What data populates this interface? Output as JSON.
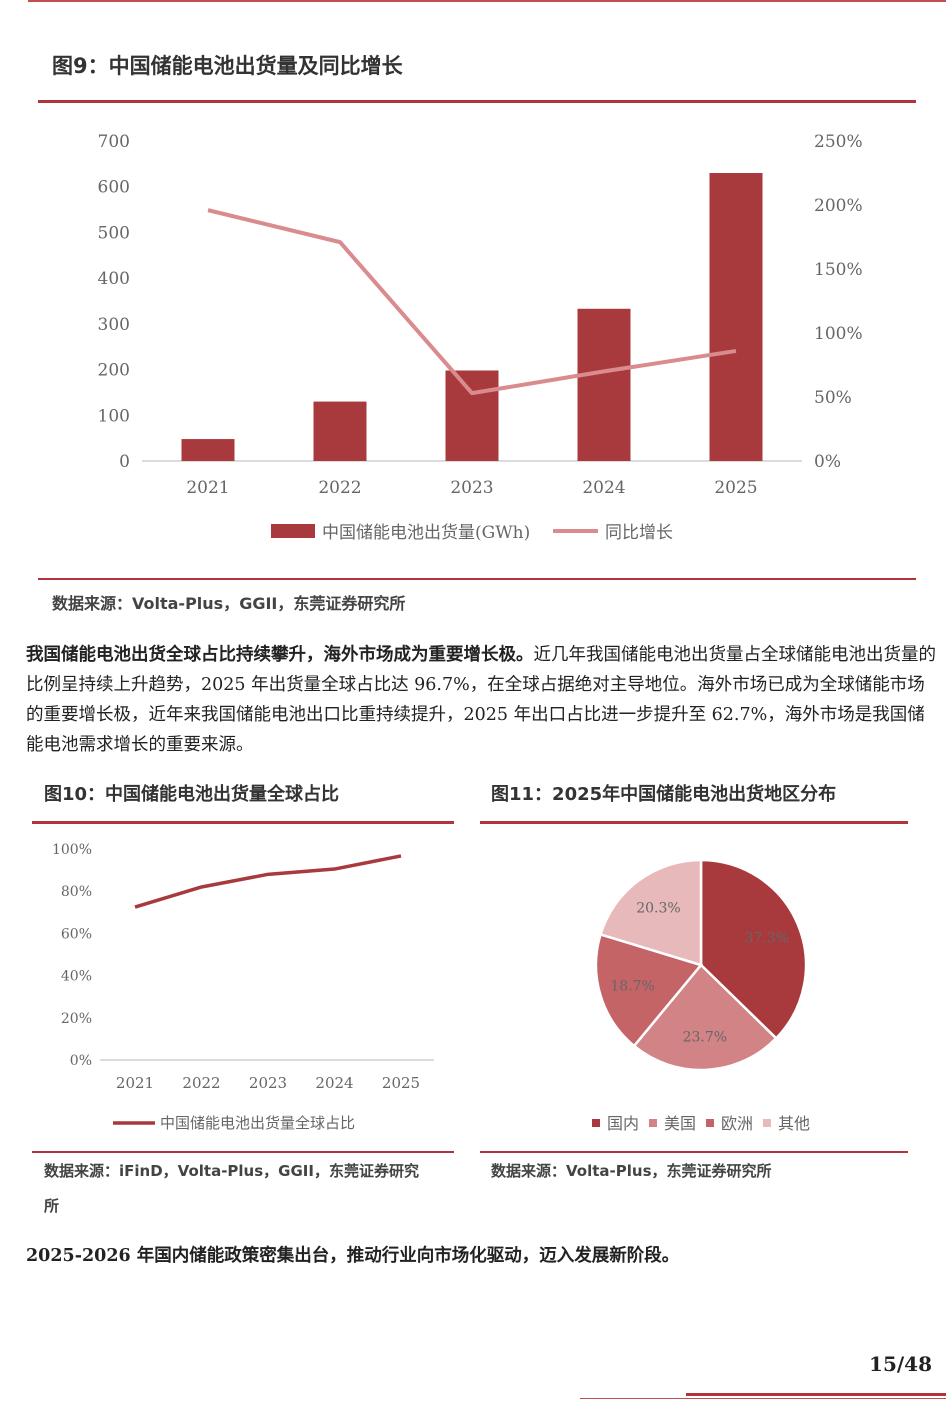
{
  "fig9": {
    "title": "图9：中国储能电池出货量及同比增长",
    "source": "数据来源：Volta-Plus，GGII，东莞证券研究所",
    "legend_bar": "中国储能电池出货量(GWh)",
    "legend_line": "同比增长"
  },
  "paragraph1": {
    "bold": "我国储能电池出货全球占比持续攀升，海外市场成为重要增长极。",
    "text": "近几年我国储能电池出货量占全球储能电池出货量的比例呈持续上升趋势，2025 年出货量全球占比达 96.7%，在全球占据绝对主导地位。海外市场已成为全球储能市场的重要增长极，近年来我国储能电池出口比重持续提升，2025 年出口占比进一步提升至 62.7%，海外市场是我国储能电池需求增长的重要来源。"
  },
  "fig10": {
    "title": "图10：中国储能电池出货量全球占比",
    "source_line1": "数据来源：iFinD，Volta-Plus，GGII，东莞证券研究",
    "source_line2": "所",
    "legend": "中国储能电池出货量全球占比"
  },
  "fig11": {
    "title": "图11：2025年中国储能电池出货地区分布",
    "source": "数据来源：Volta-Plus，东莞证券研究所"
  },
  "paragraph2": {
    "bold": "2025-2026 年国内储能政策密集出台，推动行业向市场化驱动，迈入发展新阶段。"
  },
  "page": {
    "number": "15/48"
  },
  "colors": {
    "accent": "#b0343a",
    "bar": "#a83a3d",
    "line": "#d98b8e"
  },
  "chart_data": [
    {
      "id": "fig9",
      "type": "bar+line",
      "categories": [
        "2021",
        "2022",
        "2023",
        "2024",
        "2025"
      ],
      "y_ticks": [
        "0",
        "100",
        "200",
        "300",
        "400",
        "500",
        "600",
        "700"
      ],
      "y2_ticks": [
        "0%",
        "50%",
        "100%",
        "150%",
        "200%",
        "250%"
      ],
      "ylim": [
        0,
        700
      ],
      "y2lim": [
        0,
        250
      ],
      "series": [
        {
          "name": "中国储能电池出货量(GWh)",
          "kind": "bar",
          "axis": "left",
          "values": [
            48,
            130,
            198,
            333,
            630
          ]
        },
        {
          "name": "同比增长",
          "kind": "line",
          "axis": "right",
          "values": [
            196,
            171,
            53,
            70,
            86
          ]
        }
      ]
    },
    {
      "id": "fig10",
      "type": "line",
      "categories": [
        "2021",
        "2022",
        "2023",
        "2024",
        "2025"
      ],
      "y_ticks": [
        "0%",
        "20%",
        "40%",
        "60%",
        "80%",
        "100%"
      ],
      "ylim": [
        0,
        100
      ],
      "series": [
        {
          "name": "中国储能电池出货量全球占比",
          "values": [
            72.5,
            82,
            88,
            90.5,
            96.7
          ]
        }
      ]
    },
    {
      "id": "fig11",
      "type": "pie",
      "slices": [
        {
          "name": "国内",
          "value": 37.3,
          "label": "37.3%",
          "color": "#a83a3d"
        },
        {
          "name": "美国",
          "value": 23.7,
          "label": "23.7%",
          "color": "#d18386"
        },
        {
          "name": "欧洲",
          "value": 18.7,
          "label": "18.7%",
          "color": "#c46466"
        },
        {
          "name": "其他",
          "value": 20.3,
          "label": "20.3%",
          "color": "#e8b9ba"
        }
      ]
    }
  ]
}
